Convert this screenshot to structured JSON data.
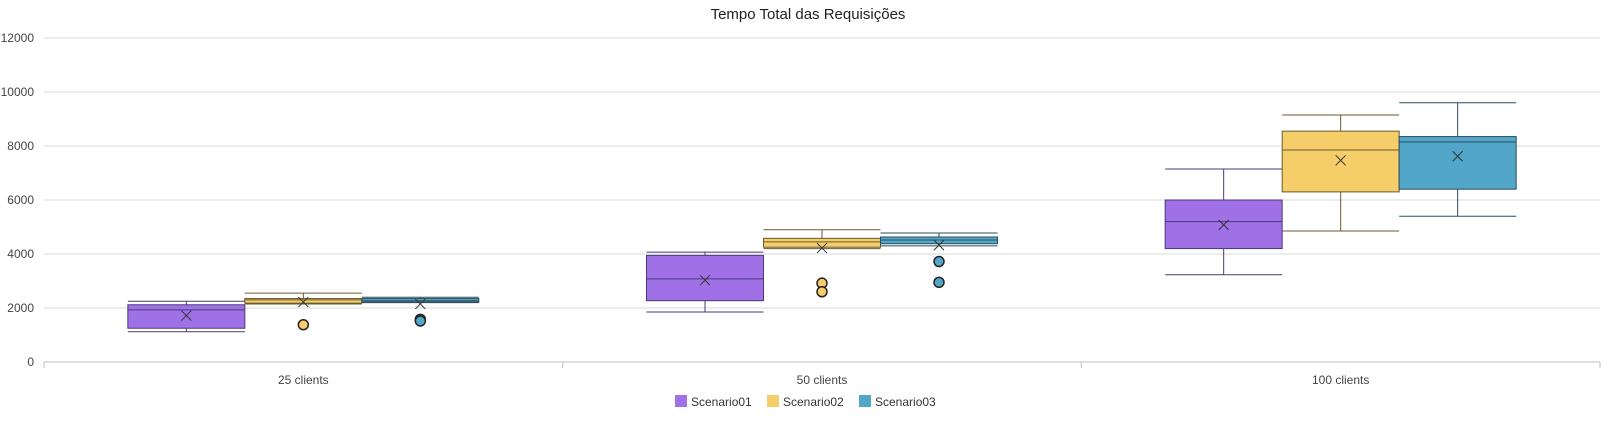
{
  "chart_data": {
    "type": "boxplot",
    "title": "Tempo Total das Requisições",
    "xlabel": "",
    "ylabel": "",
    "ylim": [
      0,
      12000
    ],
    "yticks": [
      0,
      2000,
      4000,
      6000,
      8000,
      10000,
      12000
    ],
    "ytick_labels": [
      "0",
      "2000",
      "4000",
      "6000",
      "8000",
      "10000",
      "12000"
    ],
    "grid": true,
    "legend_position": "bottom-center",
    "categories": [
      "25 clients",
      "50 clients",
      "100 clients"
    ],
    "series": [
      {
        "name": "Scenario01",
        "color": "#a070e6",
        "stroke": "#4a3a78",
        "boxes": [
          {
            "min": 1120,
            "q1": 1250,
            "median": 1930,
            "q3": 2120,
            "max": 2250,
            "mean": 1720,
            "outliers": []
          },
          {
            "min": 1850,
            "q1": 2270,
            "median": 3080,
            "q3": 3950,
            "max": 4070,
            "mean": 3030,
            "outliers": []
          },
          {
            "min": 3230,
            "q1": 4200,
            "median": 5200,
            "q3": 6000,
            "max": 7150,
            "mean": 5080,
            "outliers": []
          }
        ]
      },
      {
        "name": "Scenario02",
        "color": "#f5cd69",
        "stroke": "#6b5a30",
        "boxes": [
          {
            "min": 2150,
            "q1": 2180,
            "median": 2300,
            "q3": 2350,
            "max": 2550,
            "mean": 2220,
            "outliers": [
              1380
            ]
          },
          {
            "min": 4200,
            "q1": 4250,
            "median": 4450,
            "q3": 4580,
            "max": 4900,
            "mean": 4220,
            "outliers": [
              2920,
              2600
            ]
          },
          {
            "min": 4850,
            "q1": 6300,
            "median": 7850,
            "q3": 8550,
            "max": 9150,
            "mean": 7470,
            "outliers": []
          }
        ]
      },
      {
        "name": "Scenario03",
        "color": "#52a6c8",
        "stroke": "#2e4d5e",
        "boxes": [
          {
            "min": 2200,
            "q1": 2220,
            "median": 2270,
            "q3": 2350,
            "max": 2400,
            "mean": 2150,
            "outliers": [
              1580,
              1520
            ]
          },
          {
            "min": 4300,
            "q1": 4380,
            "median": 4520,
            "q3": 4630,
            "max": 4780,
            "mean": 4330,
            "outliers": [
              3720,
              2950
            ]
          },
          {
            "min": 5400,
            "q1": 6400,
            "median": 8150,
            "q3": 8350,
            "max": 9600,
            "mean": 7620,
            "outliers": []
          }
        ]
      }
    ]
  }
}
